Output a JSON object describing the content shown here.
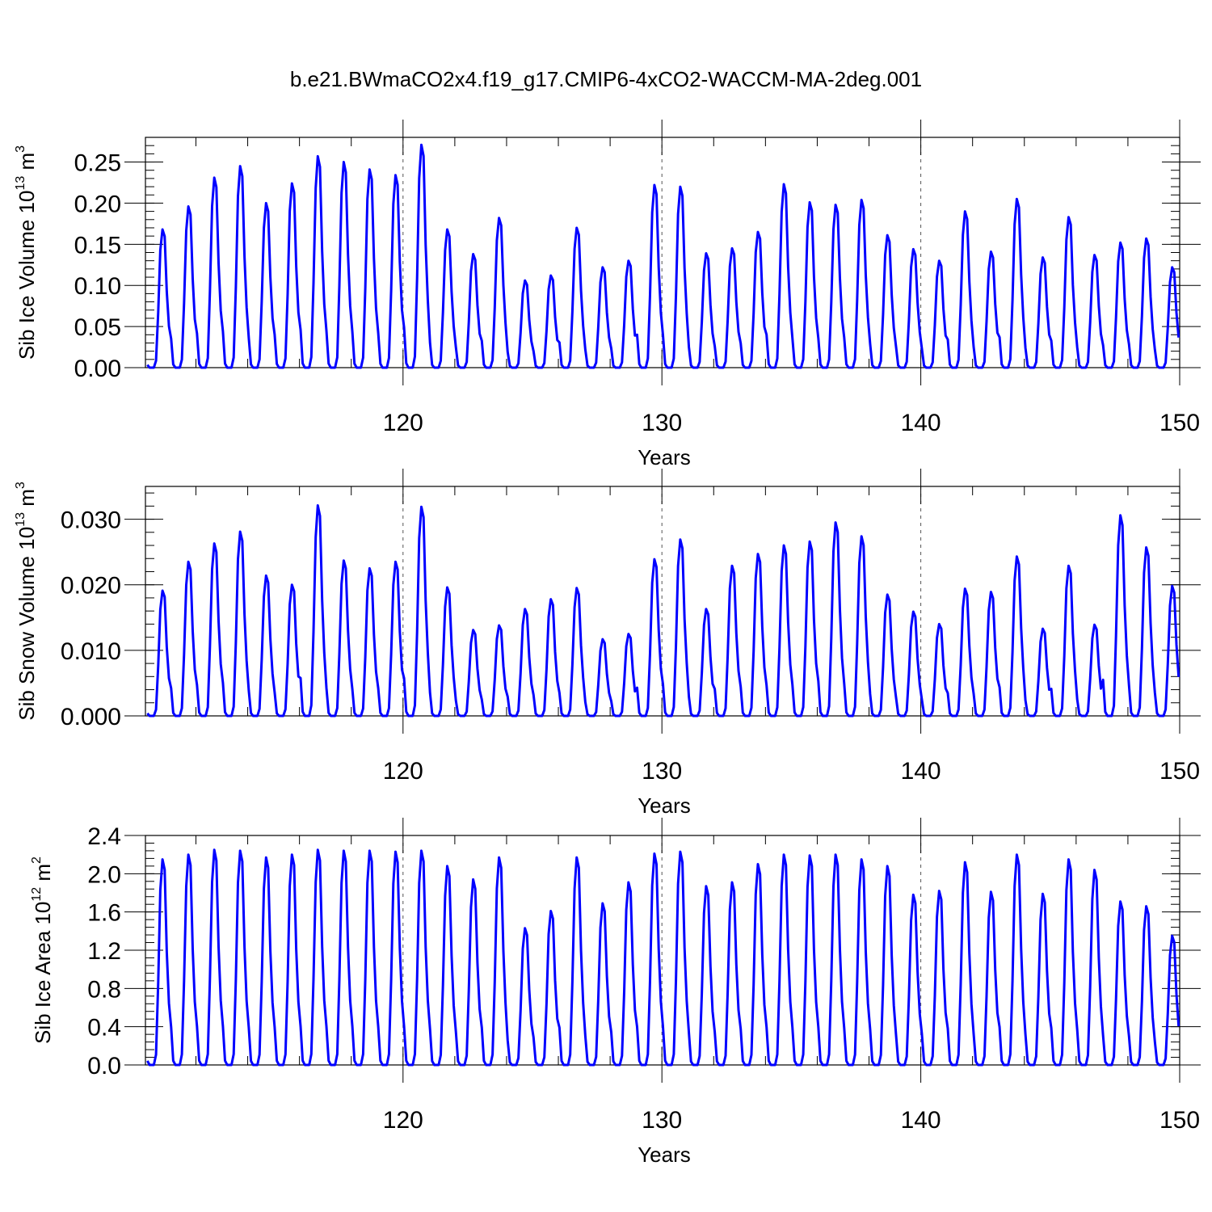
{
  "title": "b.e21.BWmaCO2x4.f19_g17.CMIP6-4xCO2-WACCM-MA-2deg.001",
  "line_color": "#0000ff",
  "chart_data": [
    {
      "type": "line",
      "series_name": "",
      "ylabel": {
        "base": "Sib Ice Volume 10",
        "exp": "13",
        "unit": " m",
        "unit_exp": "3"
      },
      "xlabel": "Years",
      "xlim": [
        110.05,
        150
      ],
      "ylim": [
        0,
        0.28
      ],
      "xticks": [
        120,
        130,
        140,
        150
      ],
      "xtick_labels": [
        "120",
        "130",
        "140",
        "150"
      ],
      "yticks": [
        0,
        0.05,
        0.1,
        0.15,
        0.2,
        0.25
      ],
      "ytick_labels": [
        "0.00",
        "0.05",
        "0.10",
        "0.15",
        "0.20",
        "0.25"
      ],
      "vgrid": [
        120,
        130,
        140
      ],
      "peaks": [
        0.168,
        0.196,
        0.231,
        0.245,
        0.2,
        0.224,
        0.257,
        0.25,
        0.241,
        0.234,
        0.271,
        0.168,
        0.138,
        0.182,
        0.106,
        0.112,
        0.17,
        0.122,
        0.13,
        0.222,
        0.22,
        0.139,
        0.145,
        0.165,
        0.223,
        0.201,
        0.198,
        0.204,
        0.161,
        0.144,
        0.13,
        0.19,
        0.141,
        0.205,
        0.134,
        0.183,
        0.137,
        0.152,
        0.157,
        0.122
      ]
    },
    {
      "type": "line",
      "series_name": "",
      "ylabel": {
        "base": "Sib Snow Volume 10",
        "exp": "13",
        "unit": " m",
        "unit_exp": "3"
      },
      "xlabel": "Years",
      "xlim": [
        110.05,
        150
      ],
      "ylim": [
        0,
        0.035
      ],
      "xticks": [
        120,
        130,
        140,
        150
      ],
      "xtick_labels": [
        "120",
        "130",
        "140",
        "150"
      ],
      "yticks": [
        0,
        0.01,
        0.02,
        0.03
      ],
      "ytick_labels": [
        "0.000",
        "0.010",
        "0.020",
        "0.030"
      ],
      "vgrid": [
        120,
        130,
        140
      ],
      "peaks": [
        0.0191,
        0.0235,
        0.0263,
        0.0281,
        0.0214,
        0.02,
        0.0321,
        0.0237,
        0.0225,
        0.0235,
        0.0319,
        0.0196,
        0.0131,
        0.0138,
        0.0163,
        0.0178,
        0.0195,
        0.0117,
        0.0125,
        0.0239,
        0.0269,
        0.0163,
        0.0229,
        0.0247,
        0.026,
        0.0266,
        0.0295,
        0.0274,
        0.0185,
        0.0159,
        0.014,
        0.0194,
        0.0189,
        0.0243,
        0.0133,
        0.0229,
        0.0139,
        0.0306,
        0.0257,
        0.0198
      ]
    },
    {
      "type": "line",
      "series_name": "",
      "ylabel": {
        "base": "Sib Ice Area 10",
        "exp": "12",
        "unit": " m",
        "unit_exp": "2"
      },
      "xlabel": "Years",
      "xlim": [
        110.05,
        150
      ],
      "ylim": [
        0,
        2.4
      ],
      "xticks": [
        120,
        130,
        140,
        150
      ],
      "xtick_labels": [
        "120",
        "130",
        "140",
        "150"
      ],
      "yticks": [
        0,
        0.4,
        0.8,
        1.2,
        1.6,
        2.0,
        2.4
      ],
      "ytick_labels": [
        "0.0",
        "0.4",
        "0.8",
        "1.2",
        "1.6",
        "2.0",
        "2.4"
      ],
      "vgrid": [
        120,
        130,
        140
      ],
      "peaks": [
        2.15,
        2.2,
        2.25,
        2.24,
        2.17,
        2.2,
        2.25,
        2.24,
        2.24,
        2.23,
        2.24,
        2.08,
        1.94,
        2.17,
        1.43,
        1.61,
        2.17,
        1.69,
        1.91,
        2.21,
        2.23,
        1.87,
        1.91,
        2.1,
        2.2,
        2.19,
        2.2,
        2.15,
        2.08,
        1.78,
        1.82,
        2.12,
        1.81,
        2.2,
        1.79,
        2.15,
        2.04,
        1.71,
        1.66,
        1.35
      ]
    }
  ]
}
